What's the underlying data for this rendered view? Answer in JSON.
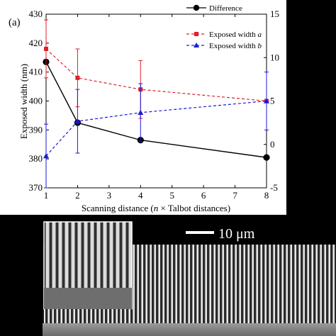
{
  "panel_label": "(a)",
  "scale_bar_label": "10 μm",
  "chart_data": {
    "type": "line",
    "x": [
      1,
      2,
      4,
      8
    ],
    "xticks": [
      "1",
      "2",
      "3",
      "4",
      "5",
      "6",
      "7",
      "8"
    ],
    "xtick_values": [
      1,
      2,
      3,
      4,
      5,
      6,
      7,
      8
    ],
    "xlim": [
      1,
      8
    ],
    "xlabel": "Scanning distance (n × Talbot distances)",
    "ylabel": "Exposed width (nm)",
    "ylim": [
      370,
      430
    ],
    "yticks": [
      "370",
      "380",
      "390",
      "400",
      "410",
      "420",
      "430"
    ],
    "ytick_values": [
      370,
      380,
      390,
      400,
      410,
      420,
      430
    ],
    "y2label": "Exposed width difference (%)",
    "y2lim": [
      -5,
      15
    ],
    "y2ticks": [
      "-5",
      "0",
      "5",
      "10",
      "15"
    ],
    "y2tick_values": [
      -5,
      0,
      5,
      10,
      15
    ],
    "grid": false,
    "legend_placement": "top-right",
    "series": [
      {
        "name": "Difference",
        "axis": "right",
        "style": "solid",
        "marker": "circle",
        "color": "#000000",
        "values": [
          9.5,
          2.5,
          0.5,
          -1.5
        ]
      },
      {
        "name": "Exposed width a",
        "axis": "left",
        "style": "dashed",
        "marker": "square",
        "color": "#e0202a",
        "values": [
          418,
          408,
          404,
          400
        ],
        "error": [
          10,
          10,
          10,
          0
        ]
      },
      {
        "name": "Exposed width b",
        "axis": "left",
        "style": "dashed",
        "marker": "triangle",
        "color": "#1a1adb",
        "values": [
          381,
          393,
          396,
          400
        ],
        "error": [
          11,
          11,
          10,
          10
        ]
      }
    ]
  }
}
